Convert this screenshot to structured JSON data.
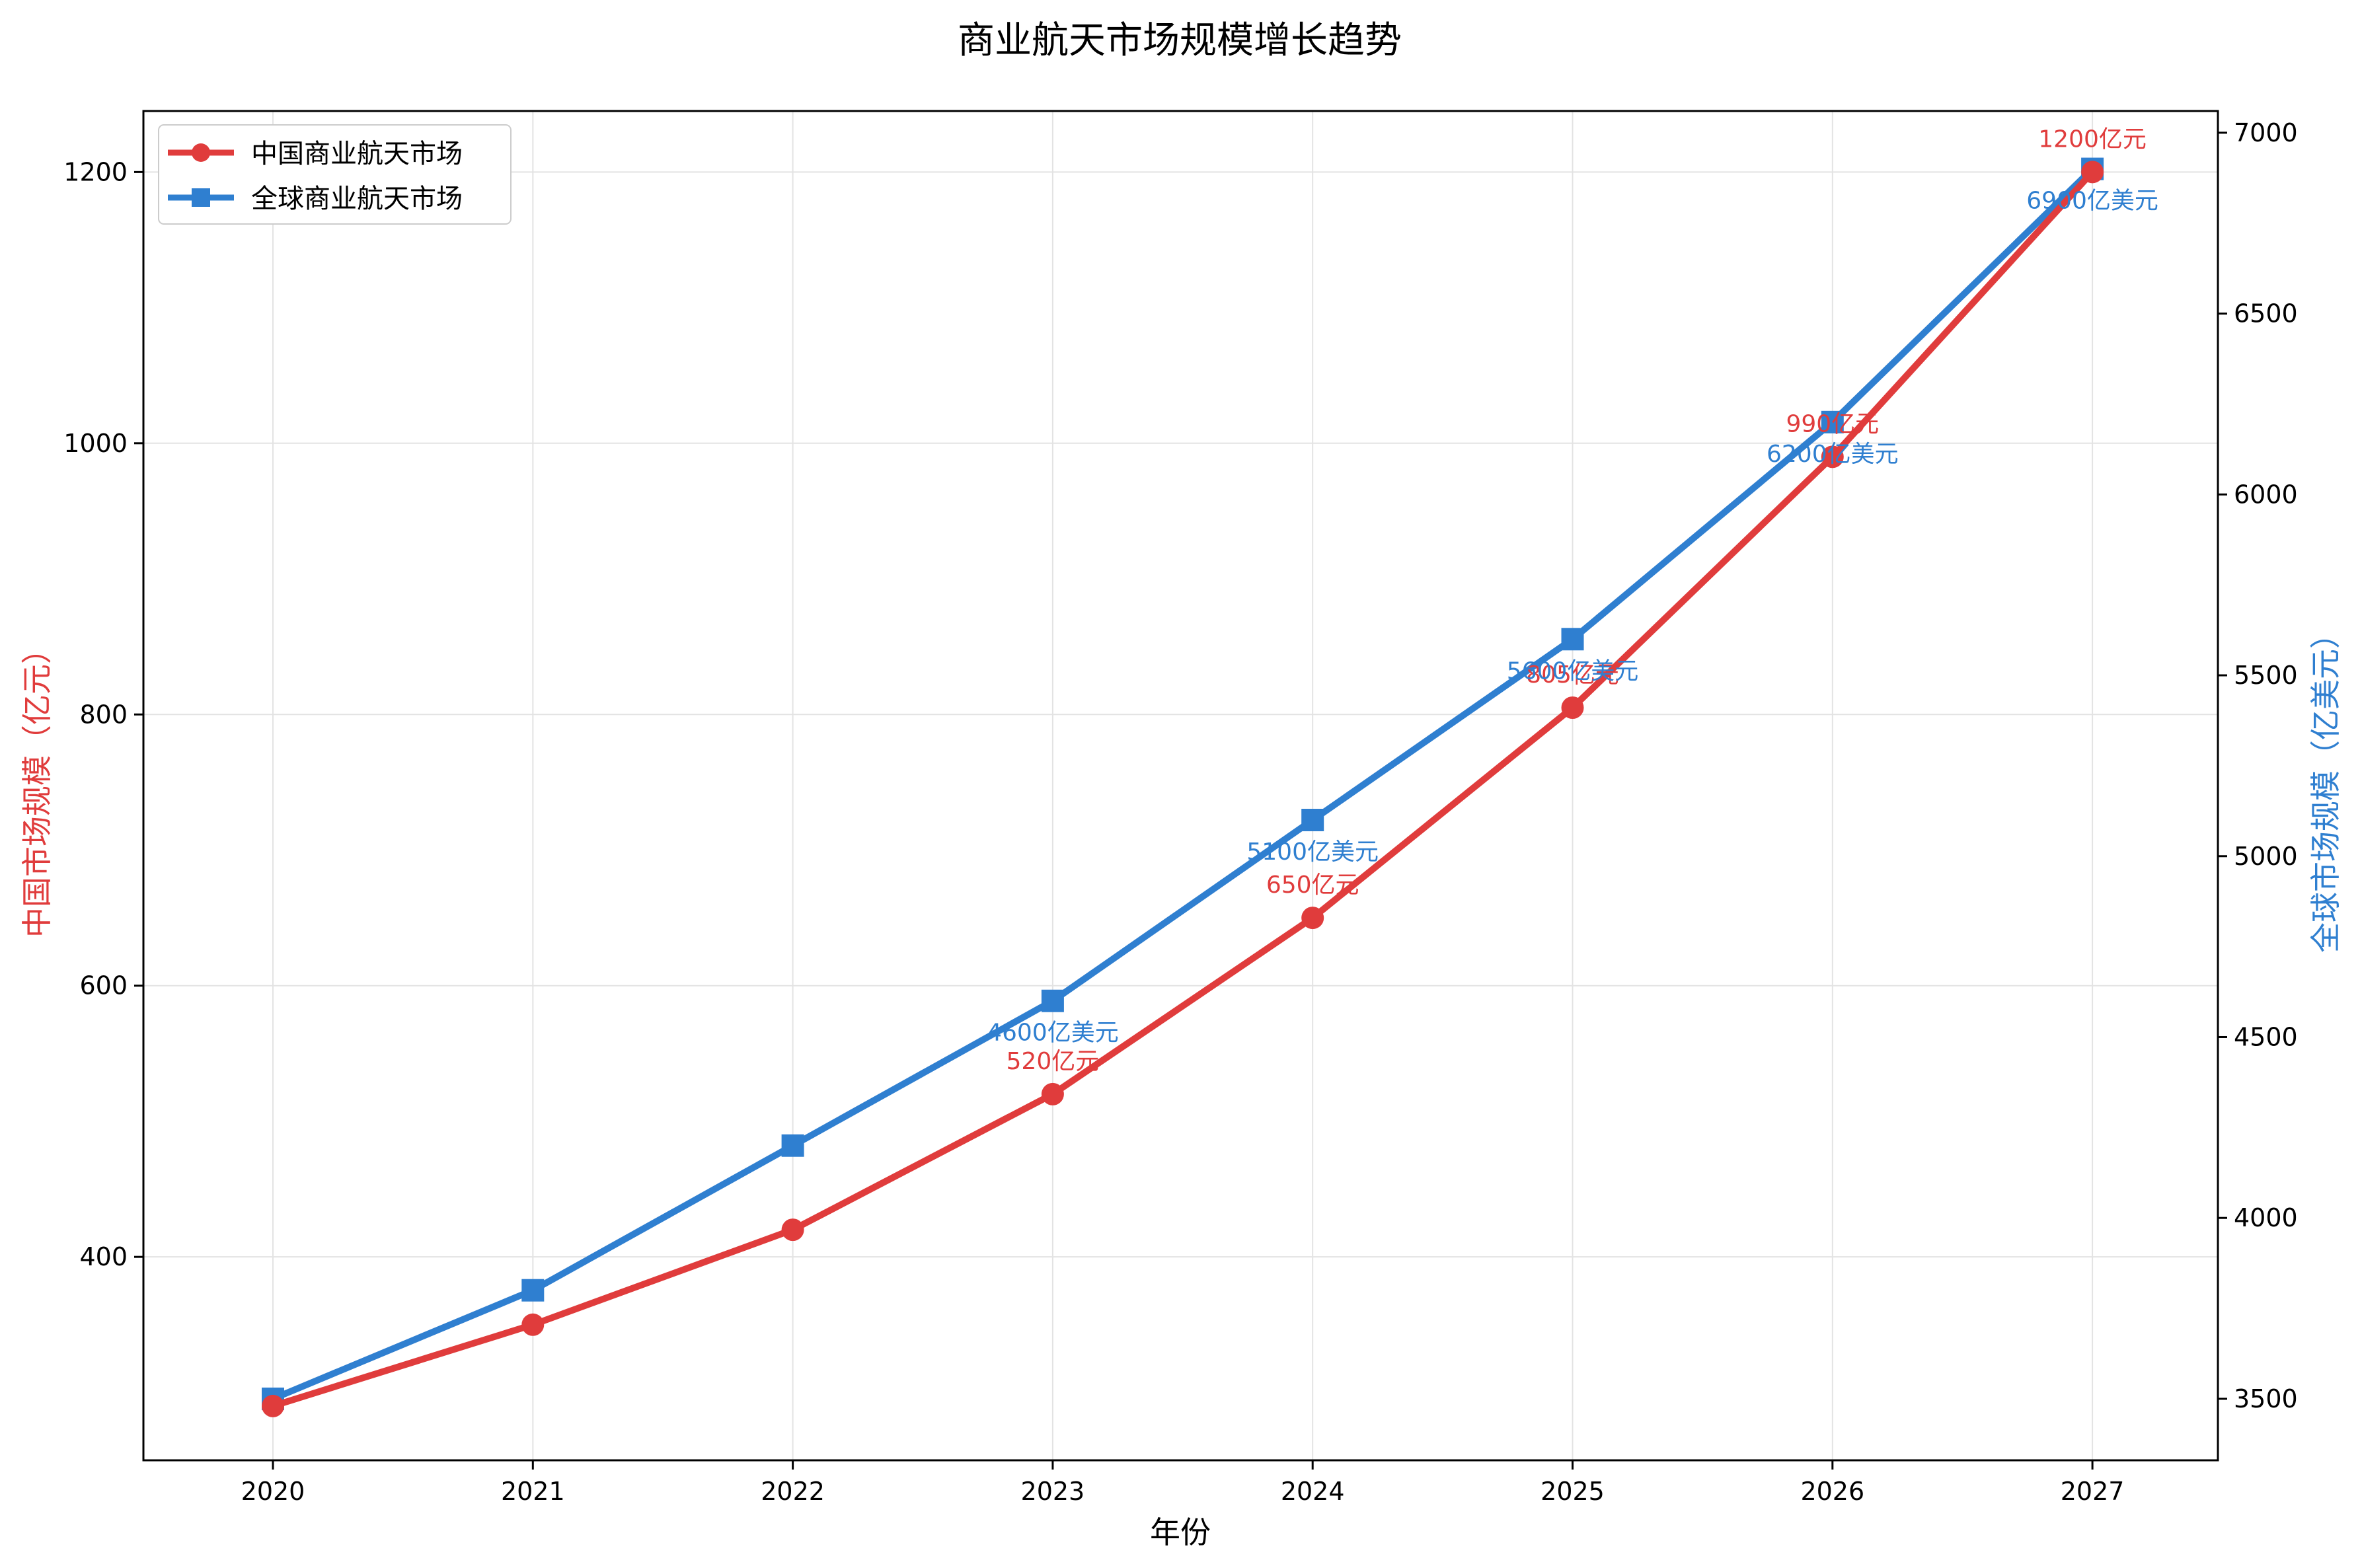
{
  "chart_data": {
    "type": "line",
    "title": "商业航天市场规模增长趋势",
    "xlabel": "年份",
    "ylabel_left": "中国市场规模（亿元）",
    "ylabel_right": "全球市场规模（亿美元）",
    "x": [
      "2020",
      "2021",
      "2022",
      "2023",
      "2024",
      "2025",
      "2026",
      "2027"
    ],
    "y_left_lim": [
      250,
      1245
    ],
    "y_right_lim": [
      3330,
      7060
    ],
    "y_left_ticks": [
      "400",
      "600",
      "800",
      "1000",
      "1200"
    ],
    "y_right_ticks": [
      "3500",
      "4000",
      "4500",
      "5000",
      "5500",
      "6000",
      "6500",
      "7000"
    ],
    "grid": true,
    "legend_position": "top-left",
    "series": [
      {
        "name": "中国商业航天市场",
        "axis": "left",
        "marker": "circle",
        "color": "#e03c3c",
        "values": [
          290,
          350,
          420,
          520,
          650,
          805,
          990,
          1200
        ],
        "labels": [
          "",
          "",
          "",
          "520亿元",
          "650亿元",
          "805亿元",
          "990亿元",
          "1200亿元"
        ]
      },
      {
        "name": "全球商业航天市场",
        "axis": "right",
        "marker": "square",
        "color": "#2f7fd0",
        "values": [
          3500,
          3800,
          4200,
          4600,
          5100,
          5600,
          6200,
          6900
        ],
        "labels": [
          "",
          "",
          "",
          "4600亿美元",
          "5100亿美元",
          "5600亿美元",
          "6200亿美元",
          "6900亿美元"
        ]
      }
    ]
  }
}
